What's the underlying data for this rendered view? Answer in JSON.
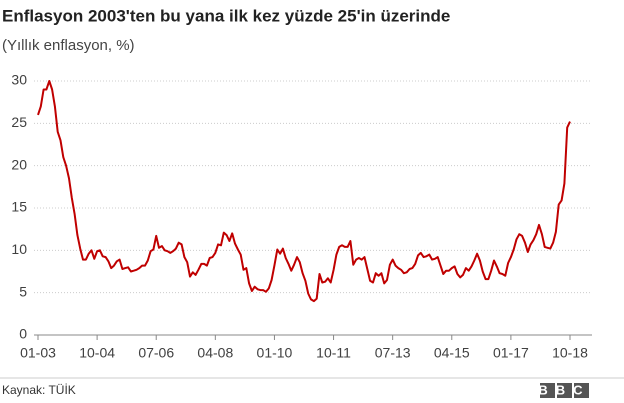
{
  "chart_data": {
    "type": "line",
    "title": "Enflasyon 2003'ten bu yana ilk kez yüzde 25'in üzerinde",
    "subtitle": "(Yıllık enflasyon, %)",
    "source": "Kaynak: TÜİK",
    "logo": "BBC",
    "categories": [
      "01-03",
      null,
      null,
      null,
      null,
      null,
      null,
      null,
      null,
      null,
      null,
      null,
      null,
      null,
      null,
      null,
      null,
      null,
      null,
      null,
      null,
      "10-04",
      null,
      null,
      null,
      null,
      null,
      null,
      null,
      null,
      null,
      null,
      null,
      null,
      null,
      null,
      null,
      null,
      null,
      null,
      null,
      null,
      "07-06",
      null,
      null,
      null,
      null,
      null,
      null,
      null,
      null,
      null,
      null,
      null,
      null,
      null,
      null,
      null,
      null,
      null,
      null,
      null,
      null,
      "04-08",
      null,
      null,
      null,
      null,
      null,
      null,
      null,
      null,
      null,
      null,
      null,
      null,
      null,
      null,
      null,
      null,
      null,
      null,
      null,
      null,
      "01-10",
      null,
      null,
      null,
      null,
      null,
      null,
      null,
      null,
      null,
      null,
      null,
      null,
      null,
      null,
      null,
      null,
      null,
      null,
      null,
      null,
      "10-11",
      null,
      null,
      null,
      null,
      null,
      null,
      null,
      null,
      null,
      null,
      null,
      null,
      null,
      null,
      null,
      null,
      null,
      null,
      null,
      null,
      "07-13",
      null,
      null,
      null,
      null,
      null,
      null,
      null,
      null,
      null,
      null,
      null,
      null,
      null,
      null,
      null,
      null,
      null,
      null,
      null,
      null,
      "04-15",
      null,
      null,
      null,
      null,
      null,
      null,
      null,
      null,
      null,
      null,
      null,
      null,
      null,
      null,
      null,
      null,
      null,
      null,
      null,
      null,
      "01-17",
      null,
      null,
      null,
      null,
      null,
      null,
      null,
      null,
      null,
      null,
      null,
      null,
      null,
      null,
      null,
      null,
      null,
      null,
      null,
      null,
      "10-18"
    ],
    "series": [
      {
        "name": "Yıllık enflasyon",
        "color": "#c00000",
        "values": [
          26,
          27,
          29,
          29,
          30,
          29,
          27,
          24,
          23,
          21,
          20,
          18.5,
          16.2,
          14.3,
          11.8,
          10.2,
          8.9,
          8.9,
          9.6,
          10,
          9,
          9.9,
          10,
          9.3,
          9.2,
          8.7,
          7.9,
          8.2,
          8.7,
          8.9,
          7.8,
          7.9,
          8,
          7.5,
          7.6,
          7.7,
          7.9,
          8.2,
          8.2,
          8.8,
          9.9,
          10.1,
          11.7,
          10.3,
          10.5,
          10,
          9.9,
          9.7,
          9.9,
          10.2,
          10.9,
          10.7,
          9.2,
          8.6,
          6.9,
          7.4,
          7.1,
          7.7,
          8.4,
          8.4,
          8.2,
          9.1,
          9.2,
          9.7,
          10.7,
          10.6,
          12.1,
          11.8,
          11.1,
          12,
          10.8,
          10.1,
          9.5,
          7.7,
          7.9,
          6.1,
          5.2,
          5.7,
          5.4,
          5.3,
          5.3,
          5.1,
          5.5,
          6.5,
          8.2,
          10.1,
          9.6,
          10.2,
          9.1,
          8.4,
          7.6,
          8.3,
          9.2,
          8.6,
          7.3,
          6.4,
          4.9,
          4.2,
          4,
          4.3,
          7.2,
          6.2,
          6.3,
          6.7,
          6.2,
          7.7,
          9.5,
          10.4,
          10.6,
          10.4,
          10.4,
          11.1,
          8.3,
          8.9,
          9.1,
          8.9,
          9.2,
          7.8,
          6.4,
          6.2,
          7.3,
          7,
          7.3,
          6.1,
          6.5,
          8.3,
          8.9,
          8.2,
          7.9,
          7.7,
          7.3,
          7.4,
          7.8,
          7.9,
          8.4,
          9.4,
          9.7,
          9.2,
          9.3,
          9.5,
          8.9,
          9,
          9.2,
          8.2,
          7.2,
          7.6,
          7.6,
          7.9,
          8.1,
          7.2,
          6.8,
          7.1,
          7.9,
          7.6,
          8.1,
          8.8,
          9.6,
          8.8,
          7.5,
          6.6,
          6.6,
          7.6,
          8.8,
          8.1,
          7.3,
          7.2,
          7,
          8.5,
          9.2,
          10.1,
          11.3,
          11.9,
          11.7,
          10.9,
          9.8,
          10.7,
          11.2,
          11.9,
          13,
          11.9,
          10.4,
          10.3,
          10.2,
          10.9,
          12.2,
          15.4,
          15.9,
          17.9,
          24.5,
          25.2
        ]
      }
    ],
    "ylim": [
      0,
      30
    ],
    "yticks": [
      0,
      5,
      10,
      15,
      20,
      25,
      30
    ],
    "grid": true
  }
}
